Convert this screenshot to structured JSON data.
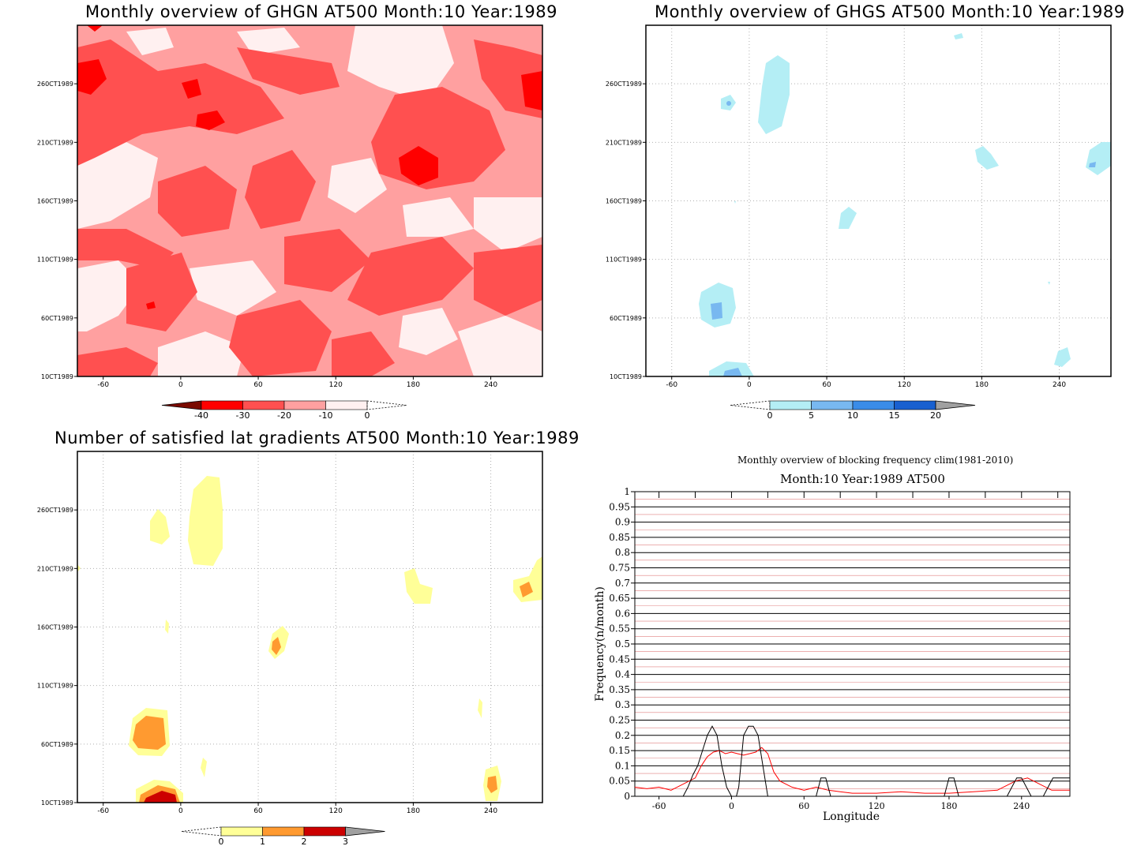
{
  "panels": {
    "ghgn": {
      "title": "Monthly overview of GHGN AT500 Month:10 Year:1989",
      "y_ticks": [
        "10CT1989",
        "60CT1989",
        "110CT1989",
        "160CT1989",
        "210CT1989",
        "260CT1989"
      ],
      "x_ticks": [
        "-60",
        "0",
        "60",
        "120",
        "180",
        "240"
      ],
      "colorbar": [
        "-40",
        "-30",
        "-20",
        "-10",
        "0"
      ]
    },
    "ghgs": {
      "title": "Monthly overview of GHGS AT500 Month:10 Year:1989",
      "y_ticks": [
        "10CT1989",
        "60CT1989",
        "110CT1989",
        "160CT1989",
        "210CT1989",
        "260CT1989"
      ],
      "x_ticks": [
        "-60",
        "0",
        "60",
        "120",
        "180",
        "240"
      ],
      "colorbar": [
        "0",
        "5",
        "10",
        "15",
        "20"
      ]
    },
    "lat": {
      "title": "Number of satisfied lat gradients AT500 Month:10 Year:1989",
      "y_ticks": [
        "10CT1989",
        "60CT1989",
        "110CT1989",
        "160CT1989",
        "210CT1989",
        "260CT1989"
      ],
      "x_ticks": [
        "-60",
        "0",
        "60",
        "120",
        "180",
        "240"
      ],
      "colorbar": [
        "0",
        "1",
        "2",
        "3"
      ]
    },
    "freq": {
      "title": "Monthly overview of blocking frequency clim(1981-2010)",
      "subtitle": "Month:10 Year:1989  AT500",
      "xlabel": "Longitude",
      "ylabel": "Frequency(n/month)"
    }
  },
  "colors": {
    "red_scale": [
      "#7a0a00",
      "#ff0000",
      "#ff5050",
      "#ffa0a0",
      "#fff0f0"
    ],
    "blue_scale": [
      "#b4eef5",
      "#78b8f0",
      "#3a8ce8",
      "#1860d0",
      "#a0a0a0"
    ],
    "yellow_scale": [
      "#ffff98",
      "#ff9a30",
      "#cc0000",
      "#a0a0a0"
    ],
    "climatology": "#ff0000",
    "observed": "#000000"
  },
  "chart_data": [
    {
      "type": "heatmap",
      "title": "Monthly overview of GHGN AT500 Month:10 Year:1989",
      "x_ticks": [
        -60,
        0,
        60,
        120,
        180,
        240
      ],
      "y_ticks": [
        "10CT1989",
        "60CT1989",
        "110CT1989",
        "160CT1989",
        "210CT1989",
        "260CT1989"
      ],
      "xlim": [
        -80,
        280
      ],
      "colorbar": [
        -40,
        -30,
        -20,
        -10,
        0
      ]
    },
    {
      "type": "heatmap",
      "title": "Monthly overview of GHGS AT500 Month:10 Year:1989",
      "x_ticks": [
        -60,
        0,
        60,
        120,
        180,
        240
      ],
      "y_ticks": [
        "10CT1989",
        "60CT1989",
        "110CT1989",
        "160CT1989",
        "210CT1989",
        "260CT1989"
      ],
      "xlim": [
        -80,
        280
      ],
      "colorbar": [
        0,
        5,
        10,
        15,
        20
      ]
    },
    {
      "type": "heatmap",
      "title": "Number of satisfied lat gradients AT500 Month:10 Year:1989",
      "x_ticks": [
        -60,
        0,
        60,
        120,
        180,
        240
      ],
      "y_ticks": [
        "10CT1989",
        "60CT1989",
        "110CT1989",
        "160CT1989",
        "210CT1989",
        "260CT1989"
      ],
      "xlim": [
        -80,
        280
      ],
      "colorbar": [
        0,
        1,
        2,
        3
      ]
    },
    {
      "type": "line",
      "title": "Monthly overview of blocking frequency clim(1981-2010)",
      "subtitle": "Month:10 Year:1989  AT500",
      "xlabel": "Longitude",
      "ylabel": "Frequency(n/month)",
      "xlim": [
        -80,
        280
      ],
      "ylim": [
        0,
        1
      ],
      "x_ticks": [
        -60,
        0,
        60,
        120,
        180,
        240
      ],
      "y_ticks": [
        "0",
        "0.05",
        "0.1",
        "0.15",
        "0.2",
        "0.25",
        "0.3",
        "0.35",
        "0.4",
        "0.45",
        "0.5",
        "0.55",
        "0.6",
        "0.65",
        "0.7",
        "0.75",
        "0.8",
        "0.85",
        "0.9",
        "0.95",
        "1"
      ],
      "series": [
        {
          "points": [
            [
              -80,
              0.03
            ],
            [
              -70,
              0.025
            ],
            [
              -60,
              0.03
            ],
            [
              -50,
              0.02
            ],
            [
              -40,
              0.04
            ],
            [
              -30,
              0.06
            ],
            [
              -25,
              0.1
            ],
            [
              -20,
              0.13
            ],
            [
              -15,
              0.145
            ],
            [
              -10,
              0.15
            ],
            [
              -5,
              0.14
            ],
            [
              0,
              0.145
            ],
            [
              5,
              0.14
            ],
            [
              10,
              0.135
            ],
            [
              15,
              0.14
            ],
            [
              20,
              0.145
            ],
            [
              25,
              0.16
            ],
            [
              30,
              0.14
            ],
            [
              35,
              0.08
            ],
            [
              40,
              0.05
            ],
            [
              50,
              0.03
            ],
            [
              60,
              0.02
            ],
            [
              70,
              0.03
            ],
            [
              80,
              0.02
            ],
            [
              90,
              0.015
            ],
            [
              100,
              0.01
            ],
            [
              120,
              0.01
            ],
            [
              140,
              0.015
            ],
            [
              160,
              0.01
            ],
            [
              180,
              0.01
            ],
            [
              200,
              0.015
            ],
            [
              220,
              0.02
            ],
            [
              235,
              0.05
            ],
            [
              245,
              0.06
            ],
            [
              255,
              0.04
            ],
            [
              265,
              0.02
            ],
            [
              280,
              0.02
            ]
          ]
        },
        {
          "points": [
            [
              -80,
              0
            ],
            [
              -40,
              0
            ],
            [
              -36,
              0.03
            ],
            [
              -32,
              0.07
            ],
            [
              -28,
              0.1
            ],
            [
              -24,
              0.15
            ],
            [
              -20,
              0.2
            ],
            [
              -16,
              0.23
            ],
            [
              -12,
              0.2
            ],
            [
              -8,
              0.1
            ],
            [
              -4,
              0.03
            ],
            [
              0,
              0
            ],
            [
              4,
              0
            ],
            [
              6,
              0.03
            ],
            [
              10,
              0.2
            ],
            [
              14,
              0.23
            ],
            [
              18,
              0.23
            ],
            [
              22,
              0.2
            ],
            [
              26,
              0.1
            ],
            [
              30,
              0
            ],
            [
              70,
              0
            ],
            [
              74,
              0.06
            ],
            [
              78,
              0.06
            ],
            [
              82,
              0
            ],
            [
              176,
              0
            ],
            [
              180,
              0.06
            ],
            [
              184,
              0.06
            ],
            [
              188,
              0
            ],
            [
              228,
              0
            ],
            [
              232,
              0.03
            ],
            [
              236,
              0.06
            ],
            [
              240,
              0.06
            ],
            [
              244,
              0.03
            ],
            [
              248,
              0
            ],
            [
              258,
              0
            ],
            [
              262,
              0.03
            ],
            [
              266,
              0.06
            ],
            [
              280,
              0.06
            ]
          ]
        }
      ]
    }
  ]
}
